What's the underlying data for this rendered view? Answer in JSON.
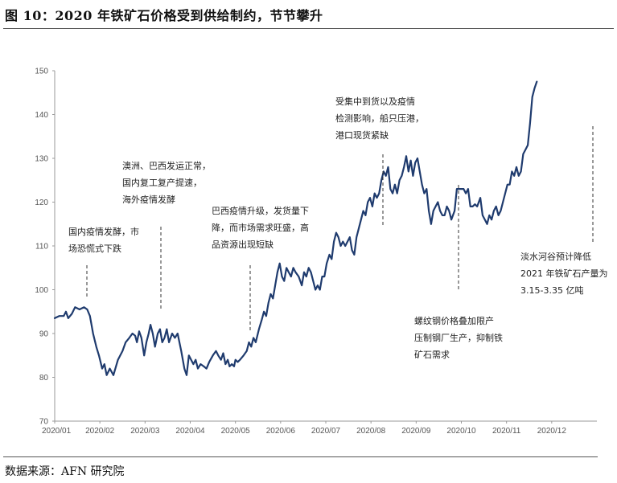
{
  "header": {
    "title": "图 10：2020 年铁矿石价格受到供给制约，节节攀升"
  },
  "footer": {
    "source": "数据来源：AFN 研究院"
  },
  "chart_data": {
    "type": "line",
    "title": "",
    "xlabel": "",
    "ylabel": "",
    "ylim": [
      70,
      150
    ],
    "yticks": [
      "70",
      "80",
      "90",
      "100",
      "110",
      "120",
      "130",
      "140",
      "150"
    ],
    "categories": [
      "2020/01",
      "2020/02",
      "2020/03",
      "2020/04",
      "2020/05",
      "2020/06",
      "2020/07",
      "2020/08",
      "2020/09",
      "2020/10",
      "2020/11",
      "2020/12"
    ],
    "line_color": "#1f3b6e",
    "grid": false,
    "series": [
      {
        "values": [
          [
            0.0,
            93.5
          ],
          [
            0.1,
            94
          ],
          [
            0.2,
            94
          ],
          [
            0.25,
            95
          ],
          [
            0.3,
            93.5
          ],
          [
            0.38,
            94.5
          ],
          [
            0.45,
            96
          ],
          [
            0.55,
            95.5
          ],
          [
            0.65,
            96
          ],
          [
            0.72,
            95.5
          ],
          [
            0.78,
            94
          ],
          [
            0.85,
            90
          ],
          [
            0.92,
            87
          ],
          [
            0.98,
            85
          ],
          [
            1.05,
            82
          ],
          [
            1.1,
            83
          ],
          [
            1.15,
            80.5
          ],
          [
            1.22,
            82
          ],
          [
            1.3,
            80.5
          ],
          [
            1.4,
            84
          ],
          [
            1.5,
            86
          ],
          [
            1.57,
            88
          ],
          [
            1.65,
            89
          ],
          [
            1.72,
            90
          ],
          [
            1.78,
            89.5
          ],
          [
            1.82,
            88
          ],
          [
            1.87,
            90.5
          ],
          [
            1.92,
            89
          ],
          [
            1.98,
            85
          ],
          [
            2.03,
            88
          ],
          [
            2.08,
            90
          ],
          [
            2.12,
            92
          ],
          [
            2.17,
            90
          ],
          [
            2.22,
            87
          ],
          [
            2.28,
            90
          ],
          [
            2.33,
            91
          ],
          [
            2.38,
            88
          ],
          [
            2.43,
            89
          ],
          [
            2.48,
            91
          ],
          [
            2.53,
            88
          ],
          [
            2.6,
            90
          ],
          [
            2.66,
            89
          ],
          [
            2.72,
            90
          ],
          [
            2.8,
            86
          ],
          [
            2.87,
            82
          ],
          [
            2.92,
            80.5
          ],
          [
            2.97,
            85
          ],
          [
            3.02,
            84
          ],
          [
            3.07,
            83
          ],
          [
            3.12,
            84
          ],
          [
            3.17,
            82
          ],
          [
            3.23,
            83
          ],
          [
            3.3,
            82.5
          ],
          [
            3.36,
            82
          ],
          [
            3.42,
            83.5
          ],
          [
            3.5,
            85
          ],
          [
            3.57,
            86
          ],
          [
            3.62,
            85
          ],
          [
            3.68,
            84
          ],
          [
            3.73,
            85.5
          ],
          [
            3.78,
            83
          ],
          [
            3.83,
            84
          ],
          [
            3.87,
            82.5
          ],
          [
            3.92,
            83
          ],
          [
            3.97,
            82.5
          ],
          [
            4.0,
            84
          ],
          [
            4.05,
            83.5
          ],
          [
            4.1,
            84
          ],
          [
            4.18,
            85
          ],
          [
            4.25,
            86
          ],
          [
            4.3,
            88
          ],
          [
            4.35,
            87
          ],
          [
            4.4,
            89
          ],
          [
            4.45,
            88
          ],
          [
            4.52,
            91
          ],
          [
            4.58,
            93
          ],
          [
            4.63,
            95
          ],
          [
            4.68,
            94
          ],
          [
            4.73,
            97
          ],
          [
            4.78,
            99
          ],
          [
            4.83,
            98
          ],
          [
            4.88,
            101
          ],
          [
            4.93,
            104
          ],
          [
            4.98,
            106
          ],
          [
            5.03,
            103
          ],
          [
            5.08,
            102
          ],
          [
            5.13,
            105
          ],
          [
            5.18,
            104
          ],
          [
            5.23,
            103
          ],
          [
            5.28,
            105
          ],
          [
            5.33,
            104
          ],
          [
            5.4,
            103
          ],
          [
            5.47,
            101
          ],
          [
            5.52,
            104
          ],
          [
            5.57,
            103
          ],
          [
            5.62,
            105
          ],
          [
            5.67,
            104
          ],
          [
            5.72,
            102
          ],
          [
            5.77,
            100
          ],
          [
            5.82,
            101
          ],
          [
            5.87,
            100
          ],
          [
            5.92,
            103
          ],
          [
            5.97,
            103
          ],
          [
            6.02,
            106
          ],
          [
            6.08,
            108
          ],
          [
            6.13,
            107
          ],
          [
            6.18,
            111
          ],
          [
            6.23,
            113
          ],
          [
            6.28,
            112
          ],
          [
            6.33,
            110
          ],
          [
            6.38,
            111
          ],
          [
            6.43,
            110
          ],
          [
            6.48,
            111
          ],
          [
            6.53,
            112
          ],
          [
            6.58,
            109
          ],
          [
            6.63,
            108
          ],
          [
            6.68,
            112
          ],
          [
            6.73,
            114
          ],
          [
            6.78,
            116
          ],
          [
            6.83,
            118
          ],
          [
            6.88,
            117
          ],
          [
            6.93,
            120
          ],
          [
            6.98,
            121
          ],
          [
            7.03,
            119
          ],
          [
            7.08,
            122
          ],
          [
            7.13,
            121
          ],
          [
            7.18,
            122
          ],
          [
            7.23,
            125
          ],
          [
            7.28,
            127
          ],
          [
            7.33,
            126
          ],
          [
            7.38,
            128
          ],
          [
            7.43,
            123
          ],
          [
            7.48,
            122
          ],
          [
            7.53,
            124
          ],
          [
            7.58,
            122
          ],
          [
            7.63,
            125
          ],
          [
            7.68,
            126
          ],
          [
            7.73,
            128
          ],
          [
            7.78,
            130.5
          ],
          [
            7.83,
            127
          ],
          [
            7.88,
            129.5
          ],
          [
            7.93,
            126
          ],
          [
            7.98,
            129
          ],
          [
            8.03,
            130
          ],
          [
            8.08,
            127
          ],
          [
            8.13,
            124
          ],
          [
            8.18,
            122
          ],
          [
            8.23,
            123
          ],
          [
            8.28,
            118
          ],
          [
            8.33,
            115
          ],
          [
            8.38,
            118
          ],
          [
            8.43,
            119
          ],
          [
            8.48,
            120
          ],
          [
            8.53,
            118
          ],
          [
            8.58,
            117
          ],
          [
            8.63,
            117
          ],
          [
            8.68,
            119
          ],
          [
            8.73,
            118
          ],
          [
            8.78,
            116
          ],
          [
            8.85,
            118
          ],
          [
            8.9,
            123
          ],
          [
            8.95,
            123
          ],
          [
            9.0,
            123
          ],
          [
            9.05,
            123
          ],
          [
            9.1,
            122
          ],
          [
            9.15,
            123
          ],
          [
            9.2,
            119
          ],
          [
            9.25,
            119
          ],
          [
            9.3,
            119.5
          ],
          [
            9.35,
            119
          ],
          [
            9.42,
            121
          ],
          [
            9.47,
            117
          ],
          [
            9.52,
            116
          ],
          [
            9.57,
            115
          ],
          [
            9.62,
            117
          ],
          [
            9.67,
            116
          ],
          [
            9.72,
            118
          ],
          [
            9.77,
            119
          ],
          [
            9.82,
            117
          ],
          [
            9.87,
            118
          ],
          [
            9.92,
            120
          ],
          [
            9.97,
            122
          ],
          [
            10.02,
            124
          ],
          [
            10.07,
            124
          ],
          [
            10.12,
            127
          ],
          [
            10.17,
            126
          ],
          [
            10.22,
            128
          ],
          [
            10.27,
            126
          ],
          [
            10.32,
            127
          ],
          [
            10.37,
            131
          ],
          [
            10.42,
            132
          ],
          [
            10.47,
            133
          ],
          [
            10.52,
            138
          ],
          [
            10.57,
            144
          ],
          [
            10.62,
            146
          ],
          [
            10.67,
            147.5
          ]
        ]
      }
    ],
    "annotations": [
      {
        "lines": [
          "国内疫情发酵，市",
          "场恐慌式下跌"
        ]
      },
      {
        "lines": [
          "澳洲、巴西发运正常，",
          "国内复工复产提速，",
          "海外疫情发酵"
        ]
      },
      {
        "lines": [
          "巴西疫情升级，发货量下",
          "降，而市场需求旺盛，高",
          "品资源出现短缺"
        ]
      },
      {
        "lines": [
          "受集中到货以及疫情",
          "检测影响，船只压港，",
          "港口现货紧缺"
        ]
      },
      {
        "lines": [
          "螺纹钢价格叠加限产",
          "压制钢厂生产，抑制铁",
          "矿石需求"
        ]
      },
      {
        "lines": [
          "淡水河谷预计降低",
          "2021 年铁矿石产量为",
          "3.15-3.35 亿吨"
        ]
      }
    ]
  }
}
